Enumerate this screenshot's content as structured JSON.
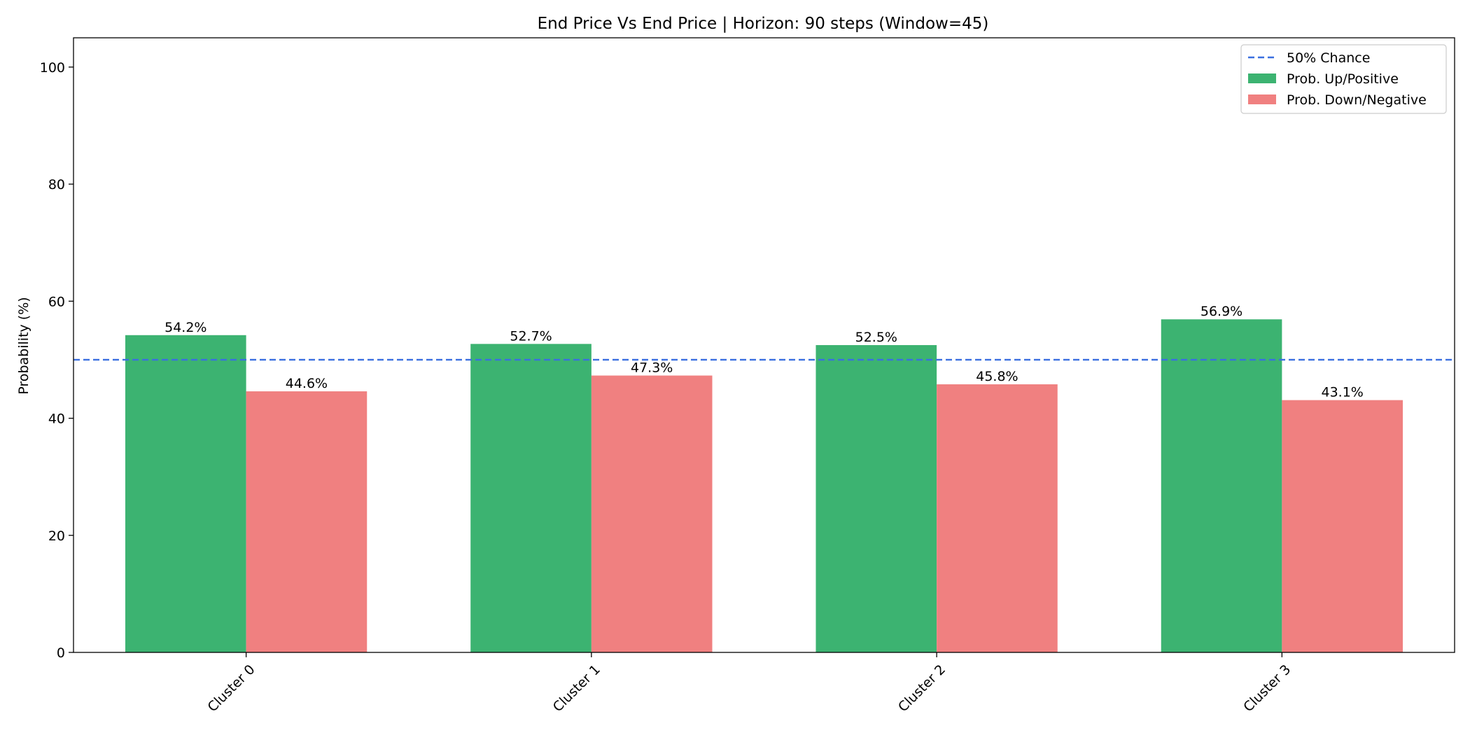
{
  "chart_data": {
    "type": "bar",
    "title": "End Price Vs End Price | Horizon: 90 steps (Window=45)",
    "xlabel": "",
    "ylabel": "Probability (%)",
    "ylim": [
      0,
      105
    ],
    "yticks": [
      0,
      20,
      40,
      60,
      80,
      100
    ],
    "categories": [
      "Cluster 0",
      "Cluster 1",
      "Cluster 2",
      "Cluster 3"
    ],
    "series": [
      {
        "name": "Prob. Up/Positive",
        "color": "#3cb371",
        "values": [
          54.2,
          52.7,
          52.5,
          56.9
        ],
        "labels": [
          "54.2%",
          "52.7%",
          "52.5%",
          "56.9%"
        ]
      },
      {
        "name": "Prob. Down/Negative",
        "color": "#f08080",
        "values": [
          44.6,
          47.3,
          45.8,
          43.1
        ],
        "labels": [
          "44.6%",
          "47.3%",
          "45.8%",
          "43.1%"
        ]
      }
    ],
    "reference_line": {
      "name": "50% Chance",
      "value": 50,
      "color": "#3a6fe0",
      "style": "dashed"
    },
    "grid": false,
    "legend_position": "top-right"
  }
}
